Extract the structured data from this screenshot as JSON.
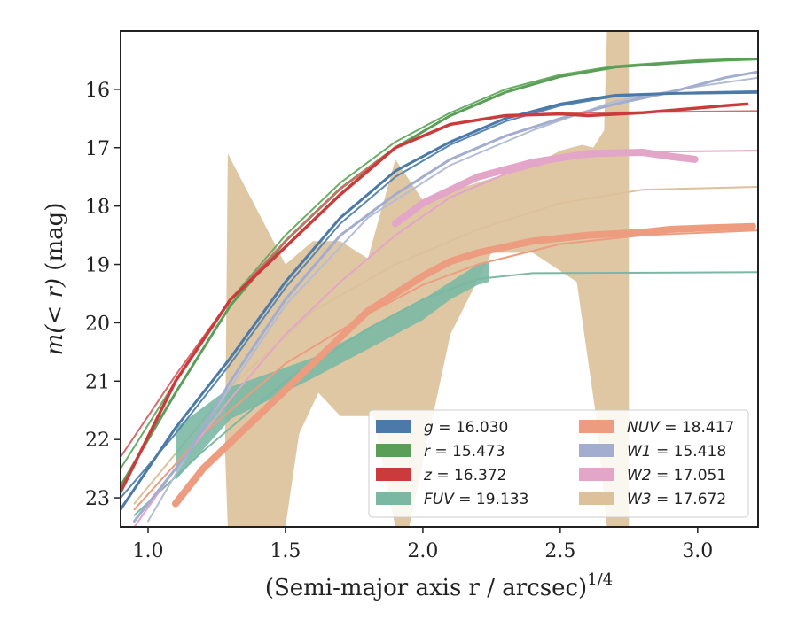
{
  "chart_data": {
    "type": "line",
    "xlabel": "(Semi-major axis r / arcsec)",
    "xlabel_sup": "1/4",
    "ylabel_pre": "m(< r)",
    "ylabel_post": " (mag)",
    "xlim": [
      0.9,
      3.22
    ],
    "ylim": [
      23.5,
      15.0
    ],
    "y_inverted": true,
    "xticks": [
      1.0,
      1.5,
      2.0,
      2.5,
      3.0
    ],
    "xtick_labels": [
      "1.0",
      "1.5",
      "2.0",
      "2.5",
      "3.0"
    ],
    "yticks": [
      16,
      17,
      18,
      19,
      20,
      21,
      22,
      23
    ],
    "ytick_labels": [
      "16",
      "17",
      "18",
      "19",
      "20",
      "21",
      "22",
      "23"
    ],
    "legend_position": "lower-right",
    "series": [
      {
        "key": "W3",
        "name": "W3",
        "label_value": "= 17.672",
        "color": "#dcc19a",
        "kind": "band",
        "upper": [
          [
            1.28,
            22.2
          ],
          [
            1.29,
            17.1
          ],
          [
            1.5,
            19.0
          ],
          [
            1.6,
            18.6
          ],
          [
            1.7,
            18.6
          ],
          [
            1.8,
            18.9
          ],
          [
            1.9,
            17.2
          ],
          [
            2.0,
            17.9
          ],
          [
            2.2,
            17.6
          ],
          [
            2.4,
            17.3
          ],
          [
            2.5,
            17.05
          ],
          [
            2.58,
            16.95
          ],
          [
            2.62,
            17.0
          ],
          [
            2.66,
            16.7
          ],
          [
            2.67,
            15.0
          ],
          [
            2.75,
            15.0
          ]
        ],
        "lower": [
          [
            2.75,
            23.5
          ],
          [
            2.67,
            23.5
          ],
          [
            2.63,
            21.6
          ],
          [
            2.56,
            19.3
          ],
          [
            2.4,
            18.8
          ],
          [
            2.25,
            18.8
          ],
          [
            2.1,
            20.2
          ],
          [
            1.95,
            23.5
          ],
          [
            1.9,
            23.5
          ],
          [
            1.82,
            21.6
          ],
          [
            1.7,
            21.6
          ],
          [
            1.62,
            21.2
          ],
          [
            1.55,
            21.9
          ],
          [
            1.5,
            23.5
          ],
          [
            1.45,
            23.5
          ],
          [
            1.29,
            23.5
          ]
        ]
      },
      {
        "key": "W3_model",
        "name": "W3 model",
        "color": "#dcc19a",
        "kind": "line",
        "width": 2,
        "points": [
          [
            0.95,
            23.1
          ],
          [
            1.3,
            21.1
          ],
          [
            1.6,
            19.8
          ],
          [
            1.9,
            19.0
          ],
          [
            2.2,
            18.4
          ],
          [
            2.5,
            17.95
          ],
          [
            2.8,
            17.72
          ],
          [
            3.22,
            17.672
          ]
        ]
      },
      {
        "key": "FUV",
        "name": "FUV",
        "label_value": "= 19.133",
        "color": "#7bb8a4",
        "kind": "band",
        "upper": [
          [
            1.1,
            21.8
          ],
          [
            1.3,
            21.1
          ],
          [
            1.6,
            20.6
          ],
          [
            1.8,
            20.1
          ],
          [
            2.0,
            19.6
          ],
          [
            2.1,
            19.3
          ],
          [
            2.2,
            19.0
          ],
          [
            2.24,
            18.95
          ]
        ],
        "lower": [
          [
            2.24,
            19.3
          ],
          [
            2.2,
            19.35
          ],
          [
            2.1,
            19.6
          ],
          [
            2.0,
            19.95
          ],
          [
            1.8,
            20.45
          ],
          [
            1.6,
            20.95
          ],
          [
            1.3,
            21.65
          ],
          [
            1.1,
            22.7
          ]
        ]
      },
      {
        "key": "FUV_model",
        "name": "FUV model",
        "color": "#7bb8a4",
        "kind": "line",
        "width": 2,
        "points": [
          [
            0.95,
            23.3
          ],
          [
            1.2,
            22.2
          ],
          [
            1.5,
            21.0
          ],
          [
            1.8,
            20.1
          ],
          [
            2.0,
            19.6
          ],
          [
            2.2,
            19.25
          ],
          [
            2.4,
            19.15
          ],
          [
            3.22,
            19.133
          ]
        ]
      },
      {
        "key": "NUV_model",
        "name": "NUV model",
        "color": "#ee9c80",
        "kind": "line",
        "width": 2,
        "points": [
          [
            0.95,
            23.2
          ],
          [
            1.2,
            21.9
          ],
          [
            1.5,
            20.7
          ],
          [
            1.8,
            19.85
          ],
          [
            2.0,
            19.35
          ],
          [
            2.2,
            19.0
          ],
          [
            2.5,
            18.65
          ],
          [
            2.8,
            18.5
          ],
          [
            3.22,
            18.417
          ]
        ]
      },
      {
        "key": "NUV",
        "name": "NUV",
        "label_value": "= 18.417",
        "color": "#ee9c80",
        "kind": "line",
        "width": 8,
        "points": [
          [
            1.1,
            23.1
          ],
          [
            1.2,
            22.5
          ],
          [
            1.4,
            21.6
          ],
          [
            1.6,
            20.7
          ],
          [
            1.8,
            19.8
          ],
          [
            2.0,
            19.2
          ],
          [
            2.1,
            18.95
          ],
          [
            2.2,
            18.8
          ],
          [
            2.4,
            18.6
          ],
          [
            2.6,
            18.5
          ],
          [
            2.8,
            18.45
          ],
          [
            2.9,
            18.4
          ],
          [
            3.0,
            18.38
          ],
          [
            3.2,
            18.35
          ]
        ]
      },
      {
        "key": "W2_model",
        "name": "W2 model",
        "color": "#e3a5c8",
        "kind": "line",
        "width": 2,
        "points": [
          [
            0.95,
            23.5
          ],
          [
            1.1,
            22.5
          ],
          [
            1.3,
            21.3
          ],
          [
            1.5,
            20.2
          ],
          [
            1.7,
            19.3
          ],
          [
            1.9,
            18.5
          ],
          [
            2.1,
            17.85
          ],
          [
            2.3,
            17.45
          ],
          [
            2.5,
            17.2
          ],
          [
            2.8,
            17.07
          ],
          [
            3.22,
            17.051
          ]
        ]
      },
      {
        "key": "W2",
        "name": "W2",
        "label_value": "= 17.051",
        "color": "#e3a5c8",
        "kind": "line",
        "width": 8,
        "points": [
          [
            1.9,
            18.3
          ],
          [
            2.0,
            17.95
          ],
          [
            2.2,
            17.5
          ],
          [
            2.4,
            17.25
          ],
          [
            2.6,
            17.1
          ],
          [
            2.8,
            17.08
          ],
          [
            2.9,
            17.15
          ],
          [
            2.99,
            17.2
          ]
        ]
      },
      {
        "key": "W1_model",
        "name": "W1 model",
        "color": "#b4bdd6",
        "kind": "line",
        "width": 2,
        "points": [
          [
            1.0,
            23.4
          ],
          [
            1.2,
            21.8
          ],
          [
            1.5,
            19.7
          ],
          [
            1.8,
            18.2
          ],
          [
            2.1,
            17.3
          ],
          [
            2.4,
            16.7
          ],
          [
            2.7,
            16.2
          ],
          [
            3.0,
            15.95
          ],
          [
            3.22,
            15.8
          ]
        ]
      },
      {
        "key": "W1",
        "name": "W1",
        "label_value": "= 15.418",
        "color": "#a2adcf",
        "kind": "line",
        "width": 3,
        "points": [
          [
            0.95,
            23.4
          ],
          [
            1.15,
            22.2
          ],
          [
            1.3,
            21.0
          ],
          [
            1.5,
            19.6
          ],
          [
            1.7,
            18.5
          ],
          [
            1.9,
            17.8
          ],
          [
            2.1,
            17.2
          ],
          [
            2.3,
            16.8
          ],
          [
            2.5,
            16.5
          ],
          [
            2.7,
            16.25
          ],
          [
            2.9,
            16.05
          ],
          [
            3.1,
            15.8
          ],
          [
            3.22,
            15.7
          ]
        ]
      },
      {
        "key": "g_model",
        "name": "g model",
        "color": "#5987b3",
        "kind": "line",
        "width": 2,
        "points": [
          [
            0.9,
            23.0
          ],
          [
            1.1,
            21.9
          ],
          [
            1.3,
            20.7
          ],
          [
            1.5,
            19.4
          ],
          [
            1.7,
            18.3
          ],
          [
            1.9,
            17.5
          ],
          [
            2.1,
            16.95
          ],
          [
            2.3,
            16.55
          ],
          [
            2.5,
            16.28
          ],
          [
            2.7,
            16.12
          ],
          [
            3.0,
            16.05
          ],
          [
            3.22,
            16.03
          ]
        ]
      },
      {
        "key": "g",
        "name": "g",
        "label_value": "= 16.030",
        "color": "#4c7aa8",
        "kind": "line",
        "width": 3,
        "points": [
          [
            0.9,
            23.2
          ],
          [
            1.1,
            21.8
          ],
          [
            1.3,
            20.6
          ],
          [
            1.5,
            19.3
          ],
          [
            1.7,
            18.2
          ],
          [
            1.9,
            17.4
          ],
          [
            2.1,
            16.9
          ],
          [
            2.3,
            16.5
          ],
          [
            2.5,
            16.25
          ],
          [
            2.7,
            16.1
          ],
          [
            2.9,
            16.07
          ],
          [
            3.22,
            16.05
          ]
        ]
      },
      {
        "key": "r_model",
        "name": "r model",
        "color": "#6aae66",
        "kind": "line",
        "width": 2,
        "points": [
          [
            0.9,
            22.5
          ],
          [
            1.1,
            21.0
          ],
          [
            1.3,
            19.6
          ],
          [
            1.5,
            18.5
          ],
          [
            1.7,
            17.6
          ],
          [
            1.9,
            16.9
          ],
          [
            2.1,
            16.4
          ],
          [
            2.3,
            16.0
          ],
          [
            2.5,
            15.75
          ],
          [
            2.7,
            15.6
          ],
          [
            3.0,
            15.5
          ],
          [
            3.22,
            15.47
          ]
        ]
      },
      {
        "key": "r",
        "name": "r",
        "label_value": "= 15.473",
        "color": "#5a9e57",
        "kind": "line",
        "width": 3,
        "points": [
          [
            0.9,
            22.8
          ],
          [
            1.1,
            21.2
          ],
          [
            1.3,
            19.7
          ],
          [
            1.5,
            18.6
          ],
          [
            1.7,
            17.7
          ],
          [
            1.9,
            17.0
          ],
          [
            2.1,
            16.45
          ],
          [
            2.3,
            16.05
          ],
          [
            2.5,
            15.78
          ],
          [
            2.7,
            15.62
          ],
          [
            2.9,
            15.55
          ],
          [
            3.1,
            15.5
          ],
          [
            3.22,
            15.48
          ]
        ]
      },
      {
        "key": "z_model",
        "name": "z model",
        "color": "#d76a6a",
        "kind": "line",
        "width": 2,
        "points": [
          [
            0.9,
            22.3
          ],
          [
            1.1,
            20.9
          ],
          [
            1.3,
            19.6
          ],
          [
            1.5,
            18.6
          ],
          [
            1.7,
            17.7
          ],
          [
            1.9,
            17.0
          ],
          [
            2.1,
            16.6
          ],
          [
            2.3,
            16.45
          ],
          [
            2.6,
            16.4
          ],
          [
            3.22,
            16.372
          ]
        ]
      },
      {
        "key": "z",
        "name": "z",
        "label_value": "= 16.372",
        "color": "#cc3b3b",
        "kind": "line",
        "width": 3.5,
        "points": [
          [
            0.9,
            22.9
          ],
          [
            1.1,
            21.0
          ],
          [
            1.3,
            19.6
          ],
          [
            1.5,
            18.7
          ],
          [
            1.7,
            17.8
          ],
          [
            1.9,
            17.0
          ],
          [
            2.1,
            16.6
          ],
          [
            2.3,
            16.45
          ],
          [
            2.5,
            16.42
          ],
          [
            2.6,
            16.45
          ],
          [
            2.8,
            16.4
          ],
          [
            3.0,
            16.32
          ],
          [
            3.1,
            16.28
          ],
          [
            3.18,
            16.25
          ]
        ]
      }
    ],
    "legend": [
      {
        "name": "g",
        "value": "= 16.030",
        "color": "#4c7aa8"
      },
      {
        "name": "r",
        "value": "= 15.473",
        "color": "#5a9e57"
      },
      {
        "name": "z",
        "value": "= 16.372",
        "color": "#cc3b3b"
      },
      {
        "name": "FUV",
        "value": "= 19.133",
        "color": "#7bb8a4"
      },
      {
        "name": "NUV",
        "value": "= 18.417",
        "color": "#ee9c80"
      },
      {
        "name": "W1",
        "value": "= 15.418",
        "color": "#a2adcf"
      },
      {
        "name": "W2",
        "value": "= 17.051",
        "color": "#e3a5c8"
      },
      {
        "name": "W3",
        "value": "= 17.672",
        "color": "#dcc19a"
      }
    ]
  }
}
